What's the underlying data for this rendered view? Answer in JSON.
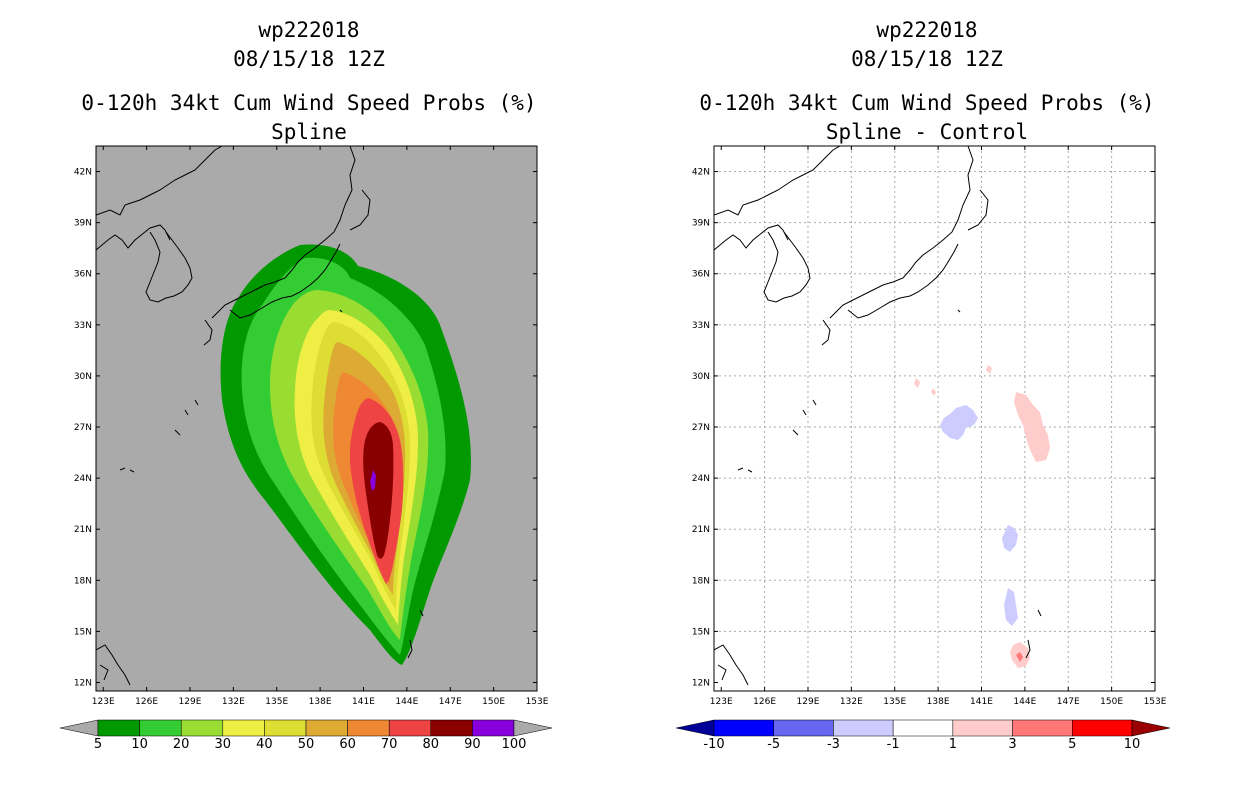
{
  "panels": [
    {
      "storm": "wp222018",
      "datetime": "08/15/18 12Z",
      "product": "0-120h 34kt Cum Wind Speed Probs (%)",
      "subtitle": "Spline",
      "colorbar": {
        "labels": [
          "5",
          "10",
          "20",
          "30",
          "40",
          "50",
          "60",
          "70",
          "80",
          "90",
          "100"
        ],
        "colors": [
          "#009900",
          "#33cc33",
          "#99dd33",
          "#eeee44",
          "#dddd33",
          "#ddaa33",
          "#ee8833",
          "#ee4444",
          "#880000",
          "#8800dd"
        ],
        "end_colors": [
          "#aaaaaa",
          "#aaaaaa"
        ]
      }
    },
    {
      "storm": "wp222018",
      "datetime": "08/15/18 12Z",
      "product": "0-120h 34kt Cum Wind Speed Probs (%)",
      "subtitle": "Spline - Control",
      "colorbar": {
        "labels": [
          "-10",
          "-5",
          "-3",
          "-1",
          "1",
          "3",
          "5",
          "10"
        ],
        "colors": [
          "#0000ff",
          "#6666ee",
          "#ccccff",
          "#ffffff",
          "#ffcccc",
          "#ff7777",
          "#ff0000"
        ],
        "end_colors": [
          "#000099",
          "#990000"
        ]
      }
    }
  ],
  "axes": {
    "lon_labels": [
      "123E",
      "126E",
      "129E",
      "132E",
      "135E",
      "138E",
      "141E",
      "144E",
      "147E",
      "150E",
      "153E"
    ],
    "lat_labels": [
      "12N",
      "15N",
      "18N",
      "21N",
      "24N",
      "27N",
      "30N",
      "33N",
      "36N",
      "39N",
      "42N"
    ]
  },
  "colors": {
    "land_bg": "#aaaaaa",
    "ocean_bg": "#ffffff",
    "grid": "#aaaaaa"
  }
}
